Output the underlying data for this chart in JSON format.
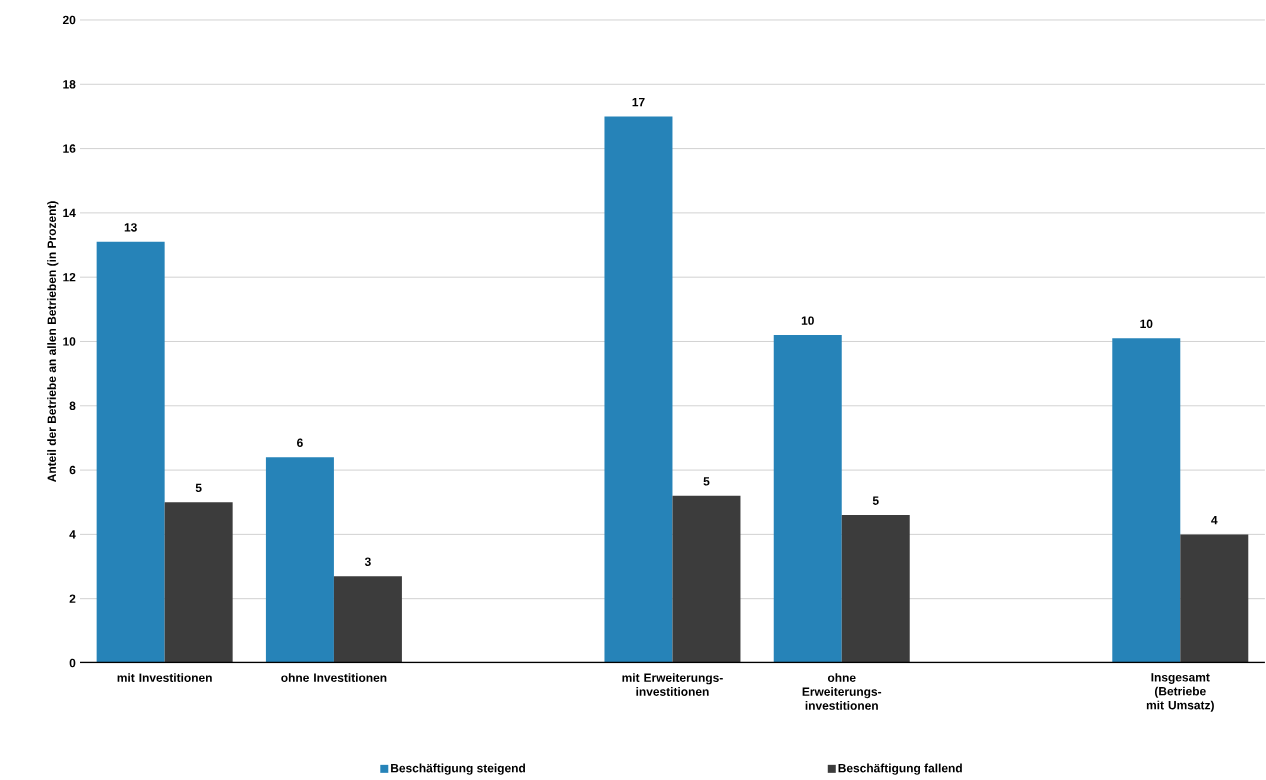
{
  "chart_data": {
    "type": "bar",
    "ylabel": "Anteil der Betriebe an allen Betrieben (in Prozent)",
    "categories": [
      "mit Investitionen",
      "ohne Investitionen",
      null,
      "mit Erweiterungs-investitionen",
      "ohne Erweiterungs-investitionen",
      null,
      "Insgesamt (Betriebe mit Umsatz)"
    ],
    "series": [
      {
        "name": "Beschäftigung steigend",
        "color": "#2683b8",
        "values": [
          13.1,
          6.4,
          null,
          17.0,
          10.2,
          null,
          10.1
        ],
        "value_labels": [
          "13",
          "6",
          null,
          "17",
          "10",
          null,
          "10"
        ]
      },
      {
        "name": "Beschäftigung fallend",
        "color": "#3c3c3c",
        "values": [
          5.0,
          2.7,
          null,
          5.2,
          4.6,
          null,
          4.0
        ],
        "value_labels": [
          "5",
          "3",
          null,
          "5",
          "5",
          null,
          "4"
        ]
      }
    ],
    "ylim": [
      0,
      20
    ],
    "yticks": [
      0,
      2,
      4,
      6,
      8,
      10,
      12,
      14,
      16,
      18,
      20
    ],
    "grid": "y",
    "legend": "bottom"
  }
}
